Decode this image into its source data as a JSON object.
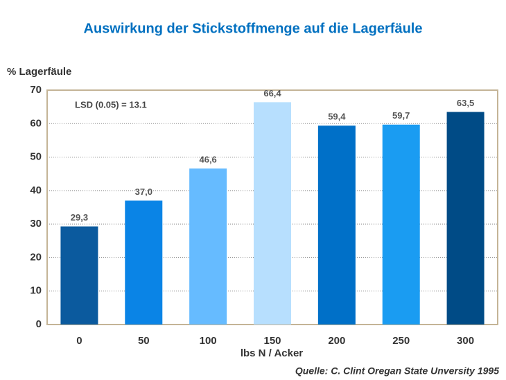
{
  "chart_data": {
    "type": "bar",
    "title": "Auswirkung der Stickstoffmenge auf die Lagerfäule",
    "y_label": "% Lagerfäule",
    "x_label": "lbs N / Acker",
    "annotation": "LSD (0.05) = 13.1",
    "source": "Quelle: C. Clint Oregan State Unversity  1995",
    "categories": [
      "0",
      "50",
      "100",
      "150",
      "200",
      "250",
      "300"
    ],
    "values": [
      29.3,
      37.0,
      46.6,
      66.4,
      59.4,
      59.7,
      63.5
    ],
    "value_labels": [
      "29,3",
      "37,0",
      "46,6",
      "66,4",
      "59,4",
      "59,7",
      "63,5"
    ],
    "colors": [
      "#0b5a9e",
      "#0a84e6",
      "#66bbff",
      "#b7dffe",
      "#0070c8",
      "#1a9cf2",
      "#004b86"
    ],
    "ylim": [
      0,
      70
    ],
    "yticks": [
      0,
      10,
      20,
      30,
      40,
      50,
      60,
      70
    ],
    "grid": true
  }
}
